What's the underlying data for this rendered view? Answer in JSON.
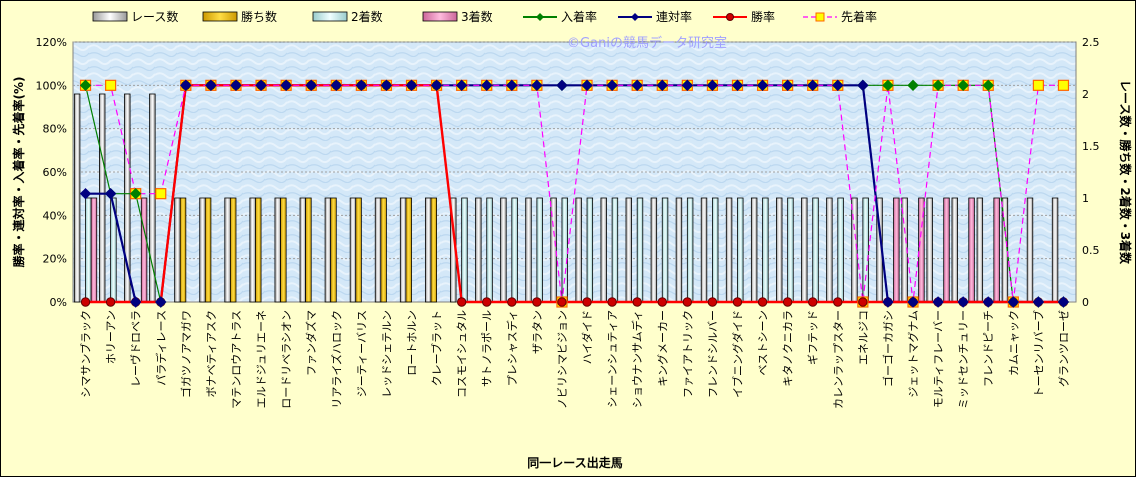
{
  "chart_data": {
    "type": "bar",
    "xlabel": "同一レース出走馬",
    "ylabel_left": "勝率・連対率・入着率・先着率(%)",
    "ylabel_right": "レース数・勝ち数・2着数・3着数",
    "watermark": "©Ganiの競馬データ研究室",
    "ylim_left": [
      0,
      120
    ],
    "ylim_right": [
      0,
      2.5
    ],
    "yticks_left": [
      "0%",
      "20%",
      "40%",
      "60%",
      "80%",
      "100%",
      "120%"
    ],
    "yticks_right": [
      "0",
      "0.5",
      "1",
      "1.5",
      "2",
      "2.5"
    ],
    "categories": [
      "シマサンブラック",
      "ホリーアン",
      "レーヴドロベラ",
      "パラディレース",
      "ゴガツノアマガワ",
      "ボナベティアスク",
      "マテンロウアトラス",
      "エルドジュリエーネ",
      "ロードリベラシオン",
      "ファンダズマ",
      "リアライズハロック",
      "ジーティーバリス",
      "レッドシェテルン",
      "ロートホルン",
      "クレーブラット",
      "コスモイシュタル",
      "サトノラポール",
      "プレシャスディ",
      "ザラタン",
      "ノビリシマビジョン",
      "ハイダイド",
      "シェーンシュティア",
      "ショウナンサムディ",
      "キングメーカー",
      "ファイアトリック",
      "フレンドシルバー",
      "イブニングダイド",
      "ベストシーン",
      "キタノクニカラ",
      "ギフテッド",
      "カレンラップスター",
      "エネルジコ",
      "ゴーゴーカガシ",
      "ジェットマグナム",
      "モルティフレーバー",
      "ミッドセンチュリー",
      "フレンドピーチ",
      "カムニャック",
      "トーセンリバーブ",
      "グランツローゼ"
    ],
    "series": [
      {
        "name": "レース数",
        "axis": "right",
        "values": [
          2,
          2,
          2,
          2,
          1,
          1,
          1,
          1,
          1,
          1,
          1,
          1,
          1,
          1,
          1,
          1,
          1,
          1,
          1,
          1,
          1,
          1,
          1,
          1,
          1,
          1,
          1,
          1,
          1,
          1,
          1,
          1,
          1,
          1,
          1,
          1,
          1,
          1,
          1,
          1
        ]
      },
      {
        "name": "勝ち数",
        "axis": "right",
        "values": [
          0,
          0,
          0,
          0,
          1,
          1,
          1,
          1,
          1,
          1,
          1,
          1,
          1,
          1,
          1,
          0,
          0,
          0,
          0,
          0,
          0,
          0,
          0,
          0,
          0,
          0,
          0,
          0,
          0,
          0,
          0,
          0,
          0,
          0,
          0,
          0,
          0,
          0,
          0,
          0
        ]
      },
      {
        "name": "2着数",
        "axis": "right",
        "values": [
          1,
          1,
          0,
          0,
          0,
          0,
          0,
          0,
          0,
          0,
          0,
          0,
          0,
          0,
          0,
          1,
          1,
          1,
          1,
          1,
          1,
          1,
          1,
          1,
          1,
          1,
          1,
          1,
          1,
          1,
          1,
          1,
          0,
          0,
          0,
          0,
          0,
          0,
          0,
          0
        ]
      },
      {
        "name": "3着数",
        "axis": "right",
        "values": [
          1,
          0,
          1,
          0,
          0,
          0,
          0,
          0,
          0,
          0,
          0,
          0,
          0,
          0,
          0,
          0,
          0,
          0,
          0,
          0,
          0,
          0,
          0,
          0,
          0,
          0,
          0,
          0,
          0,
          0,
          0,
          0,
          1,
          1,
          1,
          1,
          1,
          0,
          0,
          0
        ]
      },
      {
        "name": "入着率",
        "axis": "left",
        "values": [
          100,
          50,
          50,
          0,
          100,
          100,
          100,
          100,
          100,
          100,
          100,
          100,
          100,
          100,
          100,
          100,
          100,
          100,
          100,
          100,
          100,
          100,
          100,
          100,
          100,
          100,
          100,
          100,
          100,
          100,
          100,
          100,
          100,
          100,
          100,
          100,
          100,
          0,
          0,
          0
        ]
      },
      {
        "name": "連対率",
        "axis": "left",
        "values": [
          50,
          50,
          0,
          0,
          100,
          100,
          100,
          100,
          100,
          100,
          100,
          100,
          100,
          100,
          100,
          100,
          100,
          100,
          100,
          100,
          100,
          100,
          100,
          100,
          100,
          100,
          100,
          100,
          100,
          100,
          100,
          100,
          0,
          0,
          0,
          0,
          0,
          0,
          0,
          0
        ]
      },
      {
        "name": "勝率",
        "axis": "left",
        "values": [
          0,
          0,
          0,
          0,
          100,
          100,
          100,
          100,
          100,
          100,
          100,
          100,
          100,
          100,
          100,
          0,
          0,
          0,
          0,
          0,
          0,
          0,
          0,
          0,
          0,
          0,
          0,
          0,
          0,
          0,
          0,
          0,
          0,
          0,
          0,
          0,
          0,
          0,
          0,
          0
        ]
      },
      {
        "name": "先着率",
        "axis": "left",
        "values": [
          100,
          100,
          50,
          50,
          100,
          100,
          100,
          100,
          100,
          100,
          100,
          100,
          100,
          100,
          100,
          100,
          100,
          100,
          100,
          0,
          100,
          100,
          100,
          100,
          100,
          100,
          100,
          100,
          100,
          100,
          100,
          0,
          100,
          0,
          100,
          100,
          100,
          0,
          100,
          100
        ]
      }
    ],
    "colors": {
      "race": "#ffffff",
      "win": "#ffcc00",
      "second": "#ccffff",
      "third": "#ff99cc",
      "place_rate": "#008000",
      "rentai_rate": "#000080",
      "win_rate": "#ff0000",
      "senchaku_rate": "#ff00ff"
    },
    "legend_position": "top"
  }
}
